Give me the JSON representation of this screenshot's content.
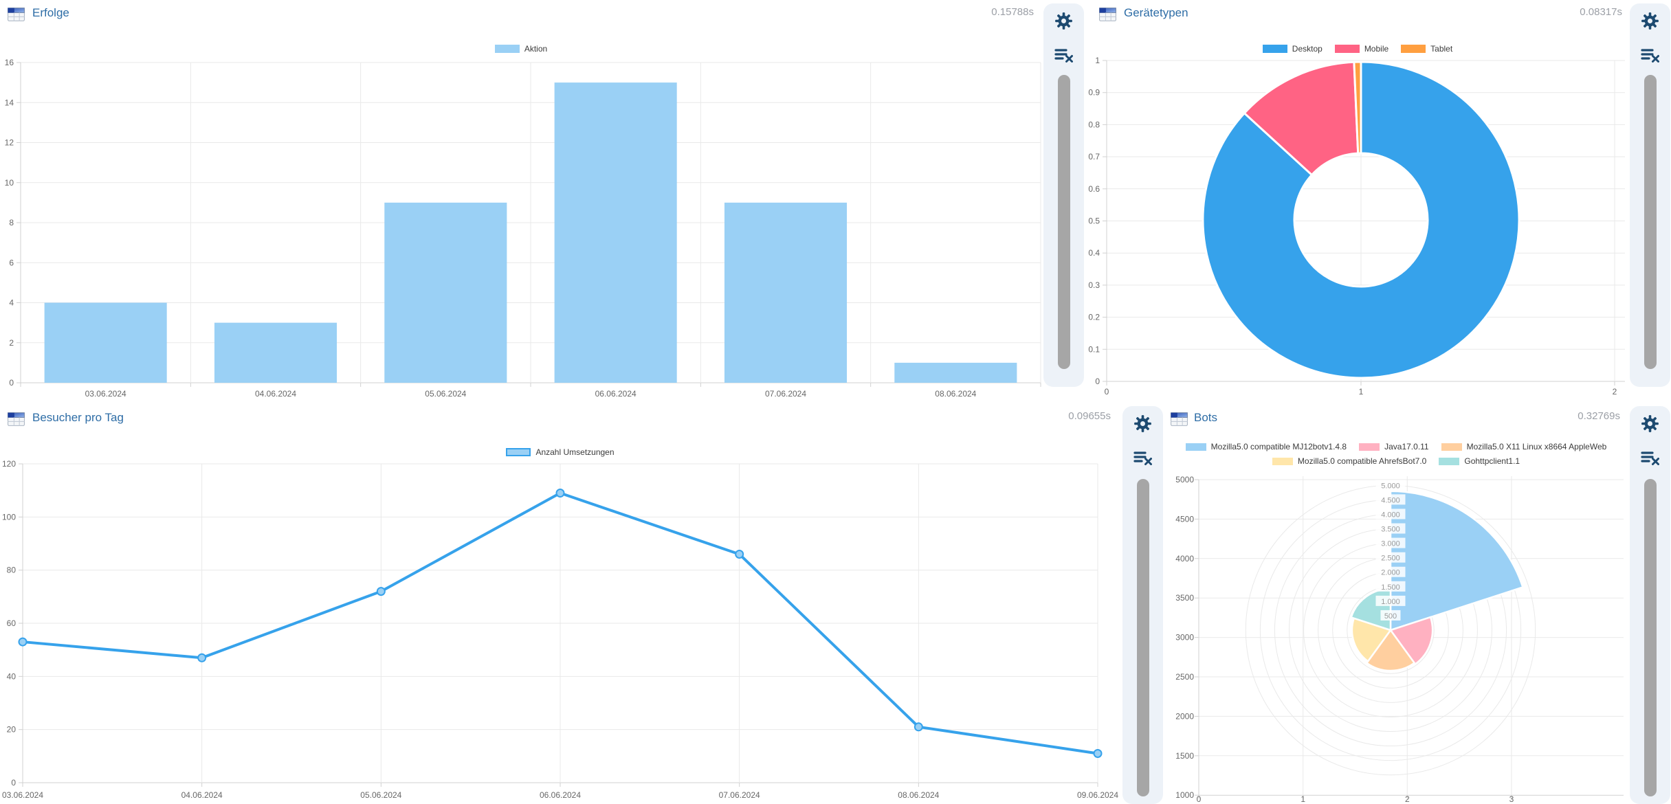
{
  "panels": [
    {
      "id": "erfolge",
      "title": "Erfolge",
      "timing": "0.15788s",
      "legend": [
        {
          "label": "Aktion",
          "fill": "#9ad0f5"
        }
      ]
    },
    {
      "id": "geraetetypen",
      "title": "Gerätetypen",
      "timing": "0.08317s",
      "legend": [
        {
          "label": "Desktop",
          "fill": "#36a2eb"
        },
        {
          "label": "Mobile",
          "fill": "#ff6384"
        },
        {
          "label": "Tablet",
          "fill": "#ff9f40"
        }
      ]
    },
    {
      "id": "besucher",
      "title": "Besucher pro Tag",
      "timing": "0.09655s",
      "legend": [
        {
          "label": "Anzahl Umsetzungen",
          "fill": "#9ad0f5",
          "border": "#36a2eb"
        }
      ]
    },
    {
      "id": "bots",
      "title": "Bots",
      "timing": "0.32769s",
      "legend": [
        {
          "label": "Mozilla5.0 compatible MJ12botv1.4.8",
          "fill": "#9ad0f5"
        },
        {
          "label": "Java17.0.11",
          "fill": "#ffb1c1"
        },
        {
          "label": "Mozilla5.0 X11 Linux x8664 AppleWeb",
          "fill": "#ffcf9f"
        },
        {
          "label": "Mozilla5.0 compatible AhrefsBot7.0",
          "fill": "#ffe6aa"
        },
        {
          "label": "Gohttpclient1.1",
          "fill": "#a5e0e0"
        }
      ]
    }
  ],
  "chart_data": [
    {
      "id": "erfolge",
      "type": "bar",
      "title": "Erfolge",
      "categories": [
        "03.06.2024",
        "04.06.2024",
        "05.06.2024",
        "06.06.2024",
        "07.06.2024",
        "08.06.2024"
      ],
      "series": [
        {
          "name": "Aktion",
          "values": [
            4,
            3,
            9,
            15,
            9,
            1
          ]
        }
      ],
      "ylim": [
        0,
        16
      ],
      "ystep": 2,
      "bar_color": "#9ad0f5",
      "grid": true,
      "legend_position": "top"
    },
    {
      "id": "geraetetypen",
      "type": "pie",
      "title": "Gerätetypen",
      "doughnut": true,
      "labels": [
        "Desktop",
        "Mobile",
        "Tablet"
      ],
      "values_percent": [
        86.8,
        12.5,
        0.7
      ],
      "colors": [
        "#36a2eb",
        "#ff6384",
        "#ff9f40"
      ],
      "y_ticks": [
        "1",
        "0.9",
        "0.8",
        "0.7",
        "0.6",
        "0.5",
        "0.4",
        "0.3",
        "0.2",
        "0.1",
        "0"
      ],
      "x_ticks": [
        "0",
        "1",
        "2"
      ],
      "legend_position": "top"
    },
    {
      "id": "besucher",
      "type": "line",
      "title": "Besucher pro Tag",
      "categories": [
        "03.06.2024",
        "04.06.2024",
        "05.06.2024",
        "06.06.2024",
        "07.06.2024",
        "08.06.2024",
        "09.06.2024"
      ],
      "series": [
        {
          "name": "Anzahl Umsetzungen",
          "values": [
            53,
            47,
            72,
            109,
            86,
            21,
            11
          ]
        }
      ],
      "ylim": [
        0,
        120
      ],
      "ystep": 20,
      "line_color": "#36a2eb",
      "point_fill": "#9ad0f5",
      "grid": true,
      "legend_position": "top"
    },
    {
      "id": "bots",
      "type": "polar_area",
      "title": "Bots",
      "labels": [
        "Mozilla5.0 compatible MJ12botv1.4.8",
        "Java17.0.11",
        "Mozilla5.0 X11 Linux x8664 AppleWeb",
        "Mozilla5.0 compatible AhrefsBot7.0",
        "Gohttpclient1.1"
      ],
      "values": [
        4800,
        1450,
        1400,
        1330,
        1430
      ],
      "colors": [
        "#9ad0f5",
        "#ffb1c1",
        "#ffcf9f",
        "#ffe6aa",
        "#a5e0e0"
      ],
      "rlim": [
        0,
        5000
      ],
      "rstep": 500,
      "radial_tick_labels": [
        "500",
        "1.000",
        "1.500",
        "2.000",
        "2.500",
        "3.000",
        "3.500",
        "4.000",
        "4.500",
        "5.000"
      ],
      "y_axis_ticks": [
        "5000",
        "4500",
        "4000",
        "3500",
        "3000",
        "2500",
        "2000",
        "1500",
        "1000"
      ],
      "x_axis_ticks": [
        "0",
        "1",
        "2",
        "3"
      ],
      "legend_position": "top"
    }
  ]
}
